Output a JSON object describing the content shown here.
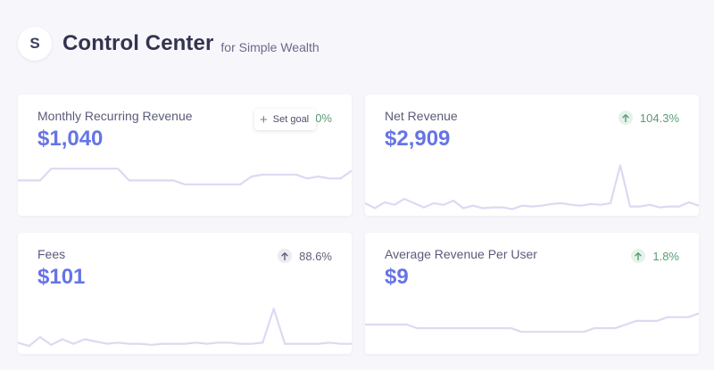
{
  "header": {
    "logo_letter": "S",
    "title": "Control Center",
    "subtitle": "for Simple Wealth"
  },
  "cards": [
    {
      "label": "Monthly Recurring Revenue",
      "value": "$1,040",
      "trend": "1.0%",
      "trend_color": "green",
      "sparkline": [
        3.8,
        3.8,
        3.8,
        4.4,
        4.4,
        4.4,
        4.4,
        4.4,
        4.4,
        4.4,
        3.8,
        3.8,
        3.8,
        3.8,
        3.8,
        3.6,
        3.6,
        3.6,
        3.6,
        3.6,
        3.6,
        4.0,
        4.1,
        4.1,
        4.1,
        4.1,
        3.9,
        4.0,
        3.9,
        3.9,
        4.3
      ]
    },
    {
      "label": "Net Revenue",
      "value": "$2,909",
      "trend": "104.3%",
      "trend_color": "green",
      "sparkline": [
        3.5,
        2.9,
        3.6,
        3.3,
        4.0,
        3.5,
        3.0,
        3.5,
        3.3,
        3.8,
        2.9,
        3.2,
        2.9,
        3.0,
        3.0,
        2.8,
        3.2,
        3.1,
        3.2,
        3.4,
        3.5,
        3.3,
        3.2,
        3.4,
        3.3,
        3.5,
        8.0,
        3.1,
        3.1,
        3.3,
        3.0,
        3.1,
        3.1,
        3.6,
        3.2
      ]
    },
    {
      "label": "Fees",
      "value": "$101",
      "trend": "88.6%",
      "trend_color": "gray",
      "sparkline": [
        10,
        7,
        15,
        8,
        13,
        9,
        13,
        11,
        9,
        10,
        9,
        9,
        8,
        9,
        9,
        9,
        10,
        9,
        10,
        10,
        9,
        9,
        10,
        40,
        9,
        9,
        9,
        9,
        10,
        9,
        9
      ]
    },
    {
      "label": "Average Revenue Per User",
      "value": "$9",
      "trend": "1.8%",
      "trend_color": "green",
      "sparkline": [
        8.1,
        8.1,
        8.1,
        8.1,
        8.1,
        8.0,
        8.0,
        8.0,
        8.0,
        8.0,
        8.0,
        8.0,
        8.0,
        8.0,
        8.0,
        7.9,
        7.9,
        7.9,
        7.9,
        7.9,
        7.9,
        7.9,
        8.0,
        8.0,
        8.0,
        8.1,
        8.2,
        8.2,
        8.2,
        8.3,
        8.3,
        8.3,
        8.4
      ]
    }
  ],
  "set_goal_label": "Set goal",
  "icons": {
    "trend": "arrow-up-icon",
    "goal": "plus-icon"
  },
  "colors": {
    "value": "#6674e6",
    "sparkline": "#dcd9f2",
    "trend_green": "#5a9c74",
    "trend_gray": "#5e5f78"
  }
}
